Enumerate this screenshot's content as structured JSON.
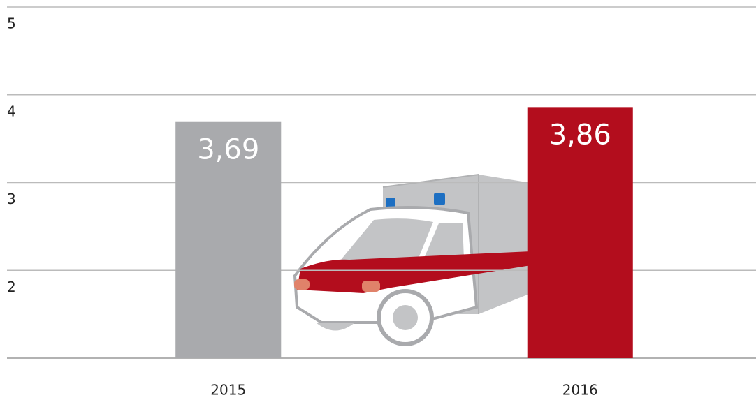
{
  "chart_data": {
    "type": "bar",
    "categories": [
      "2015",
      "2016"
    ],
    "values": [
      3.69,
      3.86
    ],
    "value_labels": [
      "3,69",
      "3,86"
    ],
    "colors": [
      "#a9aaad",
      "#b30d1d"
    ],
    "ylim": [
      1,
      5
    ],
    "yticks": [
      2,
      3,
      4,
      5
    ],
    "grid": true
  }
}
